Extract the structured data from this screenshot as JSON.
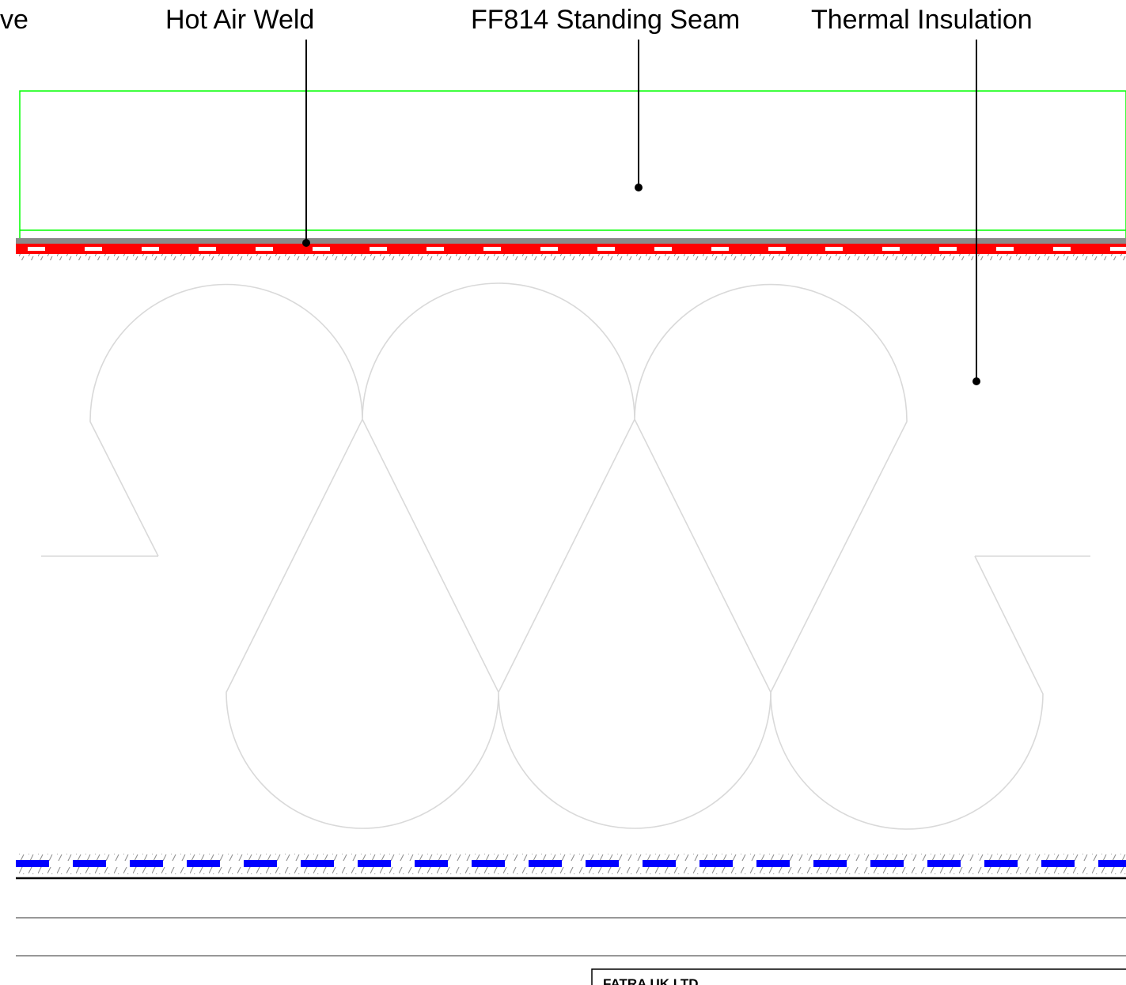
{
  "labels": {
    "partial_left": "ve",
    "hot_air_weld": "Hot Air Weld",
    "standing_seam": "FF814 Standing Seam",
    "thermal_insulation": "Thermal Insulation"
  },
  "title_block": {
    "company": "FATRA UK LTD"
  },
  "colors": {
    "membrane": "#ff0000",
    "vapour_control": "#0000ff",
    "seam_outline": "#00ff00",
    "insulation_symbol": "#d9d9d9",
    "hatch": "#9a9a9a",
    "leader": "#000000"
  }
}
